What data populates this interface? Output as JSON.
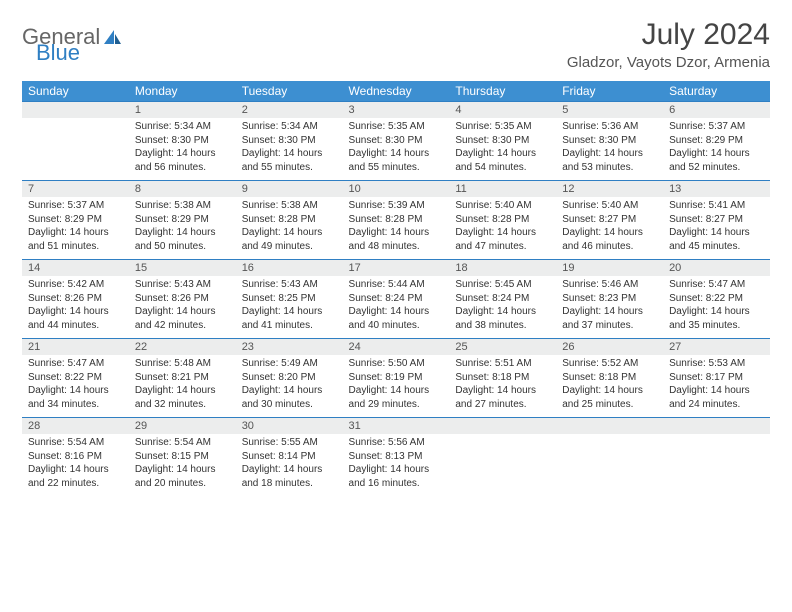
{
  "logo": {
    "text1": "General",
    "text2": "Blue",
    "accent": "#2f7fc3",
    "muted": "#666666"
  },
  "title": "July 2024",
  "location": "Gladzor, Vayots Dzor, Armenia",
  "colors": {
    "header_bg": "#3d8fd1",
    "header_text": "#ffffff",
    "numrow_bg": "#eceded",
    "numrow_border": "#2f7fc3",
    "body_text": "#333333"
  },
  "day_names": [
    "Sunday",
    "Monday",
    "Tuesday",
    "Wednesday",
    "Thursday",
    "Friday",
    "Saturday"
  ],
  "weeks": [
    {
      "nums": [
        "",
        "1",
        "2",
        "3",
        "4",
        "5",
        "6"
      ],
      "cells": [
        null,
        {
          "sunrise": "Sunrise: 5:34 AM",
          "sunset": "Sunset: 8:30 PM",
          "day1": "Daylight: 14 hours",
          "day2": "and 56 minutes."
        },
        {
          "sunrise": "Sunrise: 5:34 AM",
          "sunset": "Sunset: 8:30 PM",
          "day1": "Daylight: 14 hours",
          "day2": "and 55 minutes."
        },
        {
          "sunrise": "Sunrise: 5:35 AM",
          "sunset": "Sunset: 8:30 PM",
          "day1": "Daylight: 14 hours",
          "day2": "and 55 minutes."
        },
        {
          "sunrise": "Sunrise: 5:35 AM",
          "sunset": "Sunset: 8:30 PM",
          "day1": "Daylight: 14 hours",
          "day2": "and 54 minutes."
        },
        {
          "sunrise": "Sunrise: 5:36 AM",
          "sunset": "Sunset: 8:30 PM",
          "day1": "Daylight: 14 hours",
          "day2": "and 53 minutes."
        },
        {
          "sunrise": "Sunrise: 5:37 AM",
          "sunset": "Sunset: 8:29 PM",
          "day1": "Daylight: 14 hours",
          "day2": "and 52 minutes."
        }
      ]
    },
    {
      "nums": [
        "7",
        "8",
        "9",
        "10",
        "11",
        "12",
        "13"
      ],
      "cells": [
        {
          "sunrise": "Sunrise: 5:37 AM",
          "sunset": "Sunset: 8:29 PM",
          "day1": "Daylight: 14 hours",
          "day2": "and 51 minutes."
        },
        {
          "sunrise": "Sunrise: 5:38 AM",
          "sunset": "Sunset: 8:29 PM",
          "day1": "Daylight: 14 hours",
          "day2": "and 50 minutes."
        },
        {
          "sunrise": "Sunrise: 5:38 AM",
          "sunset": "Sunset: 8:28 PM",
          "day1": "Daylight: 14 hours",
          "day2": "and 49 minutes."
        },
        {
          "sunrise": "Sunrise: 5:39 AM",
          "sunset": "Sunset: 8:28 PM",
          "day1": "Daylight: 14 hours",
          "day2": "and 48 minutes."
        },
        {
          "sunrise": "Sunrise: 5:40 AM",
          "sunset": "Sunset: 8:28 PM",
          "day1": "Daylight: 14 hours",
          "day2": "and 47 minutes."
        },
        {
          "sunrise": "Sunrise: 5:40 AM",
          "sunset": "Sunset: 8:27 PM",
          "day1": "Daylight: 14 hours",
          "day2": "and 46 minutes."
        },
        {
          "sunrise": "Sunrise: 5:41 AM",
          "sunset": "Sunset: 8:27 PM",
          "day1": "Daylight: 14 hours",
          "day2": "and 45 minutes."
        }
      ]
    },
    {
      "nums": [
        "14",
        "15",
        "16",
        "17",
        "18",
        "19",
        "20"
      ],
      "cells": [
        {
          "sunrise": "Sunrise: 5:42 AM",
          "sunset": "Sunset: 8:26 PM",
          "day1": "Daylight: 14 hours",
          "day2": "and 44 minutes."
        },
        {
          "sunrise": "Sunrise: 5:43 AM",
          "sunset": "Sunset: 8:26 PM",
          "day1": "Daylight: 14 hours",
          "day2": "and 42 minutes."
        },
        {
          "sunrise": "Sunrise: 5:43 AM",
          "sunset": "Sunset: 8:25 PM",
          "day1": "Daylight: 14 hours",
          "day2": "and 41 minutes."
        },
        {
          "sunrise": "Sunrise: 5:44 AM",
          "sunset": "Sunset: 8:24 PM",
          "day1": "Daylight: 14 hours",
          "day2": "and 40 minutes."
        },
        {
          "sunrise": "Sunrise: 5:45 AM",
          "sunset": "Sunset: 8:24 PM",
          "day1": "Daylight: 14 hours",
          "day2": "and 38 minutes."
        },
        {
          "sunrise": "Sunrise: 5:46 AM",
          "sunset": "Sunset: 8:23 PM",
          "day1": "Daylight: 14 hours",
          "day2": "and 37 minutes."
        },
        {
          "sunrise": "Sunrise: 5:47 AM",
          "sunset": "Sunset: 8:22 PM",
          "day1": "Daylight: 14 hours",
          "day2": "and 35 minutes."
        }
      ]
    },
    {
      "nums": [
        "21",
        "22",
        "23",
        "24",
        "25",
        "26",
        "27"
      ],
      "cells": [
        {
          "sunrise": "Sunrise: 5:47 AM",
          "sunset": "Sunset: 8:22 PM",
          "day1": "Daylight: 14 hours",
          "day2": "and 34 minutes."
        },
        {
          "sunrise": "Sunrise: 5:48 AM",
          "sunset": "Sunset: 8:21 PM",
          "day1": "Daylight: 14 hours",
          "day2": "and 32 minutes."
        },
        {
          "sunrise": "Sunrise: 5:49 AM",
          "sunset": "Sunset: 8:20 PM",
          "day1": "Daylight: 14 hours",
          "day2": "and 30 minutes."
        },
        {
          "sunrise": "Sunrise: 5:50 AM",
          "sunset": "Sunset: 8:19 PM",
          "day1": "Daylight: 14 hours",
          "day2": "and 29 minutes."
        },
        {
          "sunrise": "Sunrise: 5:51 AM",
          "sunset": "Sunset: 8:18 PM",
          "day1": "Daylight: 14 hours",
          "day2": "and 27 minutes."
        },
        {
          "sunrise": "Sunrise: 5:52 AM",
          "sunset": "Sunset: 8:18 PM",
          "day1": "Daylight: 14 hours",
          "day2": "and 25 minutes."
        },
        {
          "sunrise": "Sunrise: 5:53 AM",
          "sunset": "Sunset: 8:17 PM",
          "day1": "Daylight: 14 hours",
          "day2": "and 24 minutes."
        }
      ]
    },
    {
      "nums": [
        "28",
        "29",
        "30",
        "31",
        "",
        "",
        ""
      ],
      "cells": [
        {
          "sunrise": "Sunrise: 5:54 AM",
          "sunset": "Sunset: 8:16 PM",
          "day1": "Daylight: 14 hours",
          "day2": "and 22 minutes."
        },
        {
          "sunrise": "Sunrise: 5:54 AM",
          "sunset": "Sunset: 8:15 PM",
          "day1": "Daylight: 14 hours",
          "day2": "and 20 minutes."
        },
        {
          "sunrise": "Sunrise: 5:55 AM",
          "sunset": "Sunset: 8:14 PM",
          "day1": "Daylight: 14 hours",
          "day2": "and 18 minutes."
        },
        {
          "sunrise": "Sunrise: 5:56 AM",
          "sunset": "Sunset: 8:13 PM",
          "day1": "Daylight: 14 hours",
          "day2": "and 16 minutes."
        },
        null,
        null,
        null
      ]
    }
  ]
}
